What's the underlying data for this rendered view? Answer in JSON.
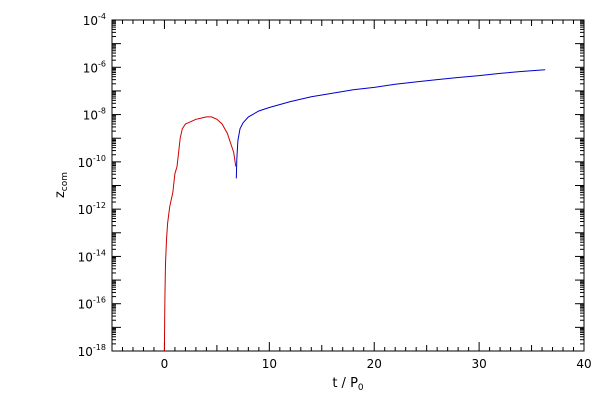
{
  "chart_data": {
    "type": "line",
    "title": "",
    "xlabel": "t / P",
    "xlabel_subscript": "0",
    "ylabel": "z",
    "ylabel_subscript": "com",
    "xlim": [
      -5,
      40
    ],
    "ylim_log10": [
      -18,
      -4
    ],
    "yscale": "log",
    "grid": false,
    "legend": "none",
    "x_ticks": [
      {
        "value": 0,
        "label": "0"
      },
      {
        "value": 10,
        "label": "10"
      },
      {
        "value": 20,
        "label": "20"
      },
      {
        "value": 30,
        "label": "30"
      },
      {
        "value": 40,
        "label": "40"
      }
    ],
    "y_ticks": [
      {
        "exp": -18,
        "base": "10",
        "exp_label": "-18"
      },
      {
        "exp": -16,
        "base": "10",
        "exp_label": "-16"
      },
      {
        "exp": -14,
        "base": "10",
        "exp_label": "-14"
      },
      {
        "exp": -12,
        "base": "10",
        "exp_label": "-12"
      },
      {
        "exp": -10,
        "base": "10",
        "exp_label": "-10"
      },
      {
        "exp": -8,
        "base": "10",
        "exp_label": "-8"
      },
      {
        "exp": -6,
        "base": "10",
        "exp_label": "-6"
      },
      {
        "exp": -4,
        "base": "10",
        "exp_label": "-4"
      }
    ],
    "series": [
      {
        "color": "#cc0000",
        "x": [
          0.0,
          0.02,
          0.05,
          0.1,
          0.2,
          0.3,
          0.5,
          0.8,
          1.0,
          1.2,
          1.5,
          1.7,
          2.0,
          2.5,
          3.0,
          3.5,
          4.0,
          4.5,
          5.0,
          5.5,
          6.0,
          6.3,
          6.6,
          6.8
        ],
        "y_log10": [
          -18.0,
          -16.5,
          -15.5,
          -14.3,
          -13.3,
          -12.6,
          -11.9,
          -11.3,
          -10.5,
          -10.2,
          -9.0,
          -8.6,
          -8.4,
          -8.3,
          -8.2,
          -8.15,
          -8.1,
          -8.1,
          -8.2,
          -8.4,
          -8.8,
          -9.2,
          -9.6,
          -10.2
        ]
      },
      {
        "color": "#0000cc",
        "x": [
          6.85,
          6.9,
          7.0,
          7.2,
          7.5,
          8.0,
          9.0,
          10.0,
          12.0,
          14.0,
          16.0,
          18.0,
          20.0,
          22.0,
          24.0,
          26.0,
          28.0,
          30.0,
          32.0,
          34.0,
          36.3
        ],
        "y_log10": [
          -10.7,
          -9.9,
          -9.1,
          -8.6,
          -8.35,
          -8.1,
          -7.85,
          -7.7,
          -7.45,
          -7.25,
          -7.1,
          -6.95,
          -6.85,
          -6.72,
          -6.62,
          -6.52,
          -6.43,
          -6.35,
          -6.26,
          -6.18,
          -6.1
        ]
      }
    ]
  }
}
